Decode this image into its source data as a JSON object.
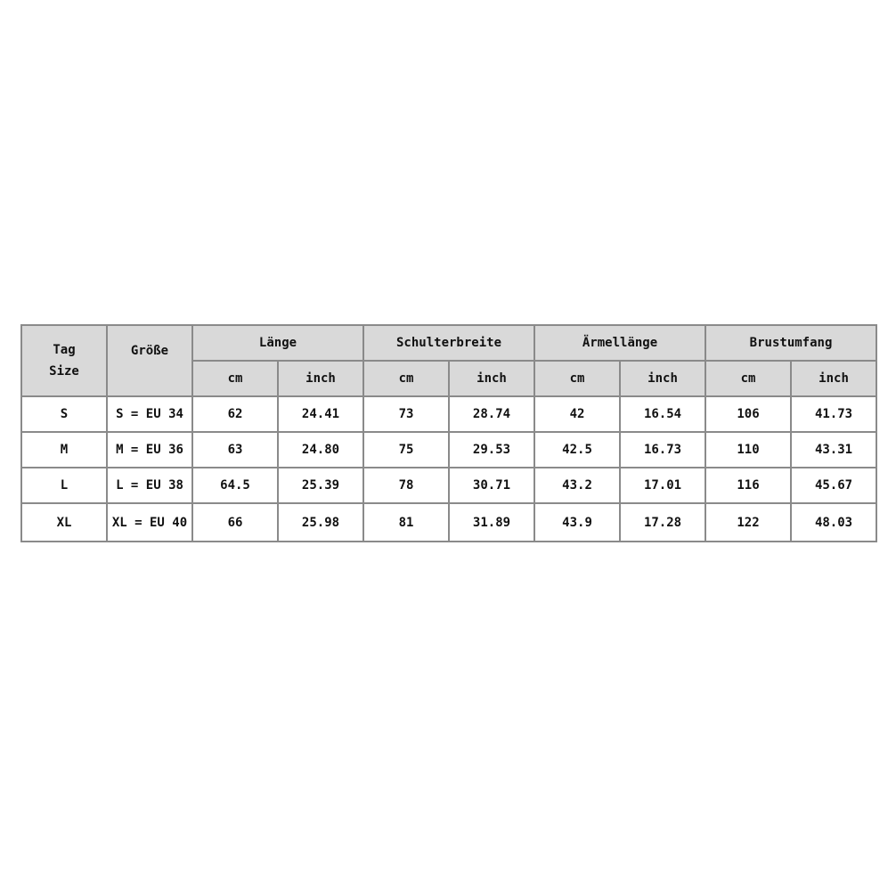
{
  "table": {
    "headers": {
      "tag_size": [
        "Tag",
        "Size"
      ],
      "groesse": "Größe",
      "groups": [
        "Länge",
        "Schulterbreite",
        "Ärmellänge",
        "Brustumfang"
      ],
      "units": [
        "cm",
        "inch"
      ]
    },
    "rows": [
      {
        "tag": "S",
        "size": "S = EU 34",
        "values": [
          "62",
          "24.41",
          "73",
          "28.74",
          "42",
          "16.54",
          "106",
          "41.73"
        ]
      },
      {
        "tag": "M",
        "size": "M = EU 36",
        "values": [
          "63",
          "24.80",
          "75",
          "29.53",
          "42.5",
          "16.73",
          "110",
          "43.31"
        ]
      },
      {
        "tag": "L",
        "size": "L = EU 38",
        "values": [
          "64.5",
          "25.39",
          "78",
          "30.71",
          "43.2",
          "17.01",
          "116",
          "45.67"
        ]
      },
      {
        "tag": "XL",
        "size": "XL = EU 40",
        "values": [
          "66",
          "25.98",
          "81",
          "31.89",
          "43.9",
          "17.28",
          "122",
          "48.03"
        ]
      }
    ],
    "colors": {
      "header_bg": "#d9d9d9",
      "border": "#8a8a8a"
    }
  }
}
